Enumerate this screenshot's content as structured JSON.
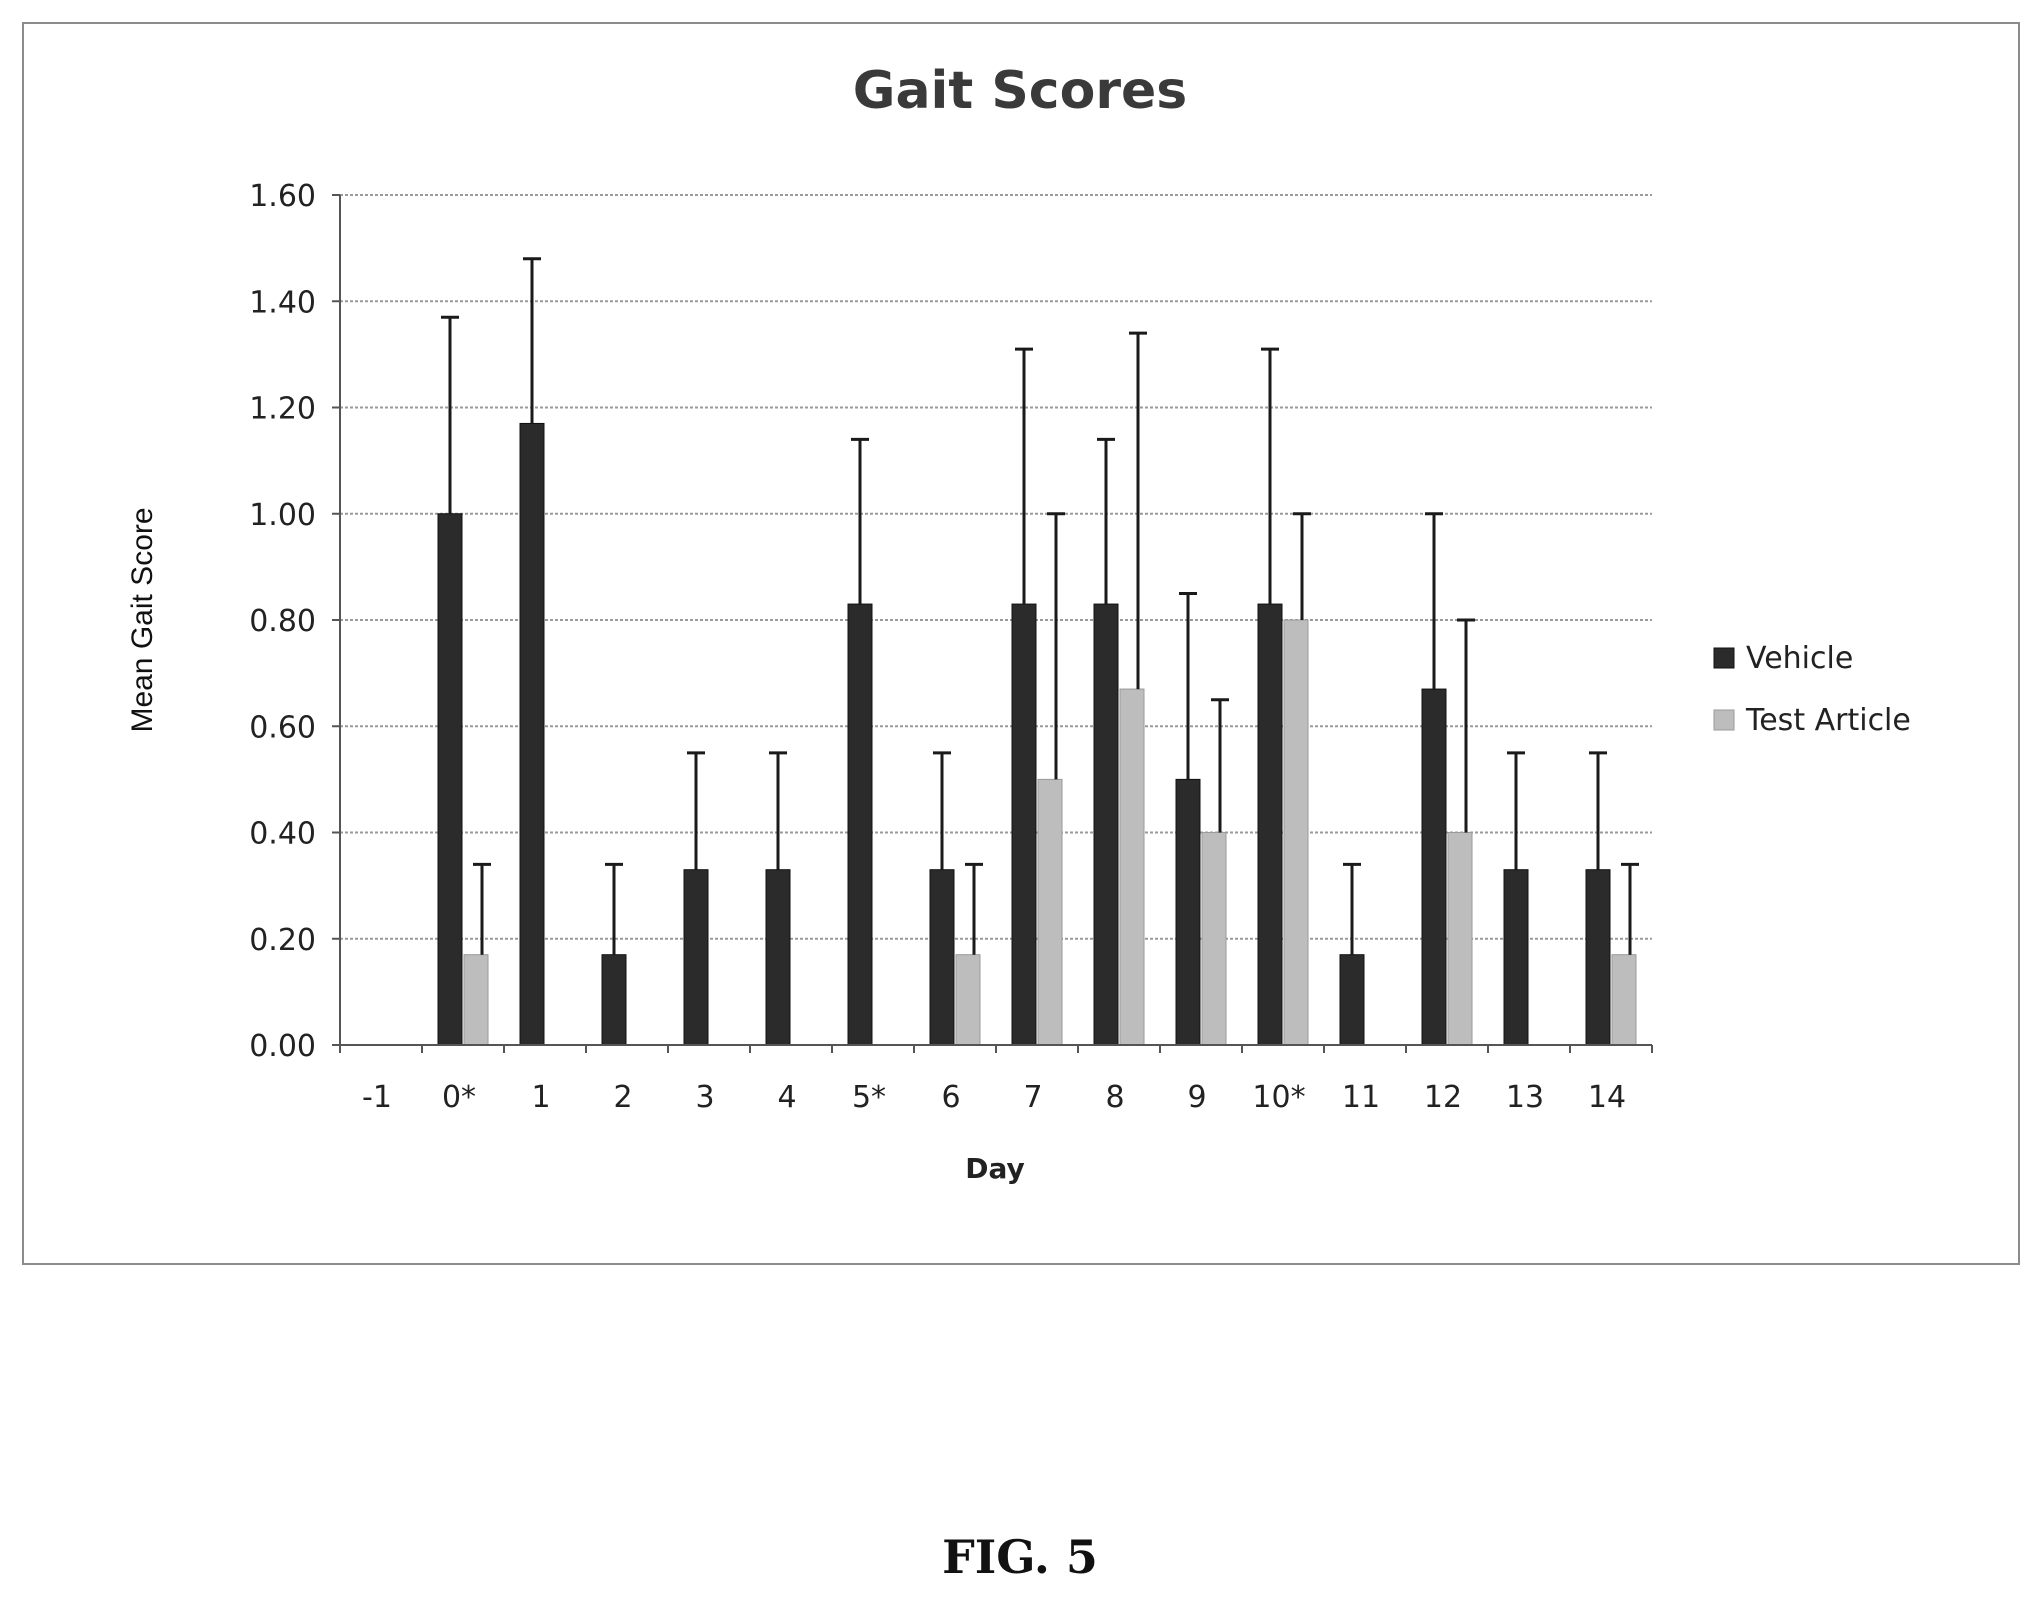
{
  "chart_data": {
    "type": "bar",
    "title": "Gait Scores",
    "xlabel": "Day",
    "ylabel": "Mean Gait Score",
    "categories": [
      "-1",
      "0*",
      "1",
      "2",
      "3",
      "4",
      "5*",
      "6",
      "7",
      "8",
      "9",
      "10*",
      "11",
      "12",
      "13",
      "14"
    ],
    "series": [
      {
        "name": "Vehicle",
        "color": "#2b2b2b",
        "values": [
          0,
          1.0,
          1.17,
          0.17,
          0.33,
          0.33,
          0.83,
          0.33,
          0.83,
          0.83,
          0.5,
          0.83,
          0.17,
          0.67,
          0.33,
          0.33
        ],
        "error_upper": [
          0,
          0.37,
          0.31,
          0.17,
          0.22,
          0.22,
          0.31,
          0.22,
          0.48,
          0.31,
          0.35,
          0.48,
          0.17,
          0.33,
          0.22,
          0.22
        ]
      },
      {
        "name": "Test Article",
        "color": "#bdbdbd",
        "values": [
          0,
          0.17,
          0,
          0,
          0,
          0,
          0,
          0.17,
          0.5,
          0.67,
          0.4,
          0.8,
          0,
          0.4,
          0,
          0.17
        ],
        "error_upper": [
          0,
          0.17,
          0,
          0,
          0,
          0,
          0,
          0.17,
          0.5,
          0.67,
          0.25,
          0.2,
          0,
          0.4,
          0,
          0.17
        ]
      }
    ],
    "y_ticks": [
      "0.00",
      "0.20",
      "0.40",
      "0.60",
      "0.80",
      "1.00",
      "1.20",
      "1.40",
      "1.60"
    ],
    "ylim": [
      0,
      1.6
    ],
    "grid": true,
    "legend_position": "right"
  },
  "figure": {
    "caption": "FIG. 5"
  }
}
